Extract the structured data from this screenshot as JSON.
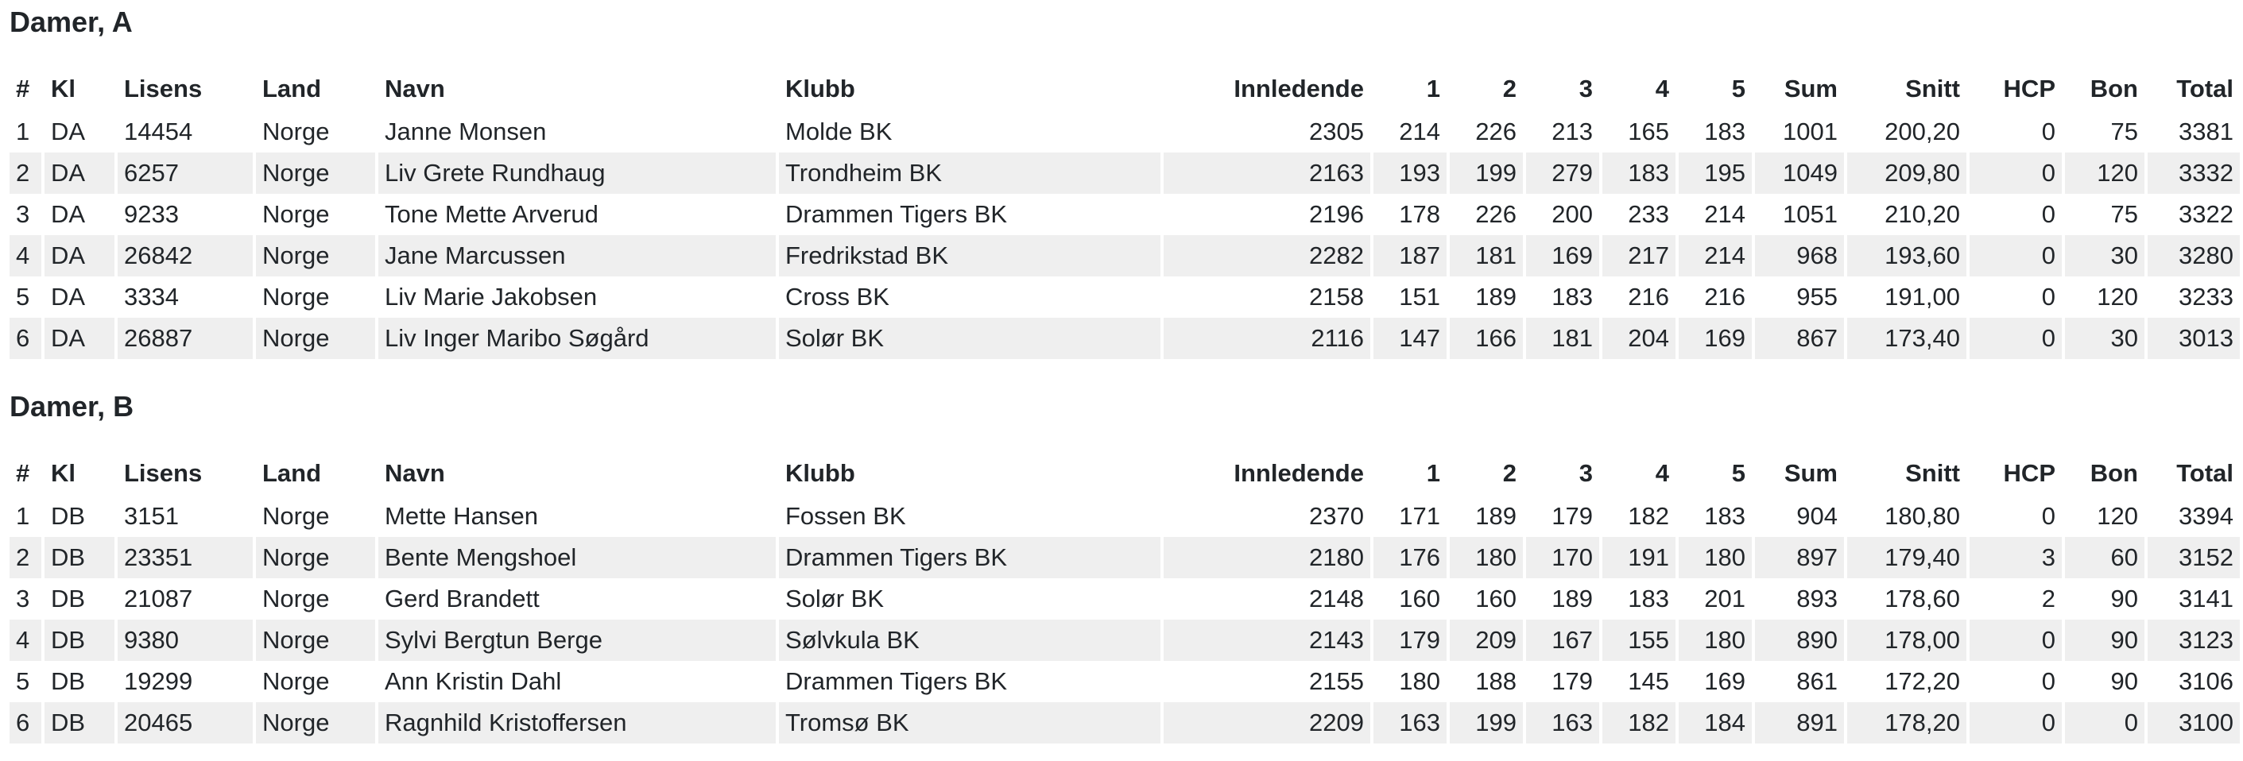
{
  "columns": [
    "#",
    "Kl",
    "Lisens",
    "Land",
    "Navn",
    "Klubb",
    "Innledende",
    "1",
    "2",
    "3",
    "4",
    "5",
    "Sum",
    "Snitt",
    "HCP",
    "Bon",
    "Total"
  ],
  "sections": [
    {
      "title": "Damer, A",
      "rows": [
        [
          "1",
          "DA",
          "14454",
          "Norge",
          "Janne Monsen",
          "Molde BK",
          "2305",
          "214",
          "226",
          "213",
          "165",
          "183",
          "1001",
          "200,20",
          "0",
          "75",
          "3381"
        ],
        [
          "2",
          "DA",
          "6257",
          "Norge",
          "Liv Grete Rundhaug",
          "Trondheim BK",
          "2163",
          "193",
          "199",
          "279",
          "183",
          "195",
          "1049",
          "209,80",
          "0",
          "120",
          "3332"
        ],
        [
          "3",
          "DA",
          "9233",
          "Norge",
          "Tone Mette Arverud",
          "Drammen Tigers BK",
          "2196",
          "178",
          "226",
          "200",
          "233",
          "214",
          "1051",
          "210,20",
          "0",
          "75",
          "3322"
        ],
        [
          "4",
          "DA",
          "26842",
          "Norge",
          "Jane Marcussen",
          "Fredrikstad BK",
          "2282",
          "187",
          "181",
          "169",
          "217",
          "214",
          "968",
          "193,60",
          "0",
          "30",
          "3280"
        ],
        [
          "5",
          "DA",
          "3334",
          "Norge",
          "Liv Marie Jakobsen",
          "Cross BK",
          "2158",
          "151",
          "189",
          "183",
          "216",
          "216",
          "955",
          "191,00",
          "0",
          "120",
          "3233"
        ],
        [
          "6",
          "DA",
          "26887",
          "Norge",
          "Liv Inger Maribo Søgård",
          "Solør BK",
          "2116",
          "147",
          "166",
          "181",
          "204",
          "169",
          "867",
          "173,40",
          "0",
          "30",
          "3013"
        ]
      ]
    },
    {
      "title": "Damer, B",
      "rows": [
        [
          "1",
          "DB",
          "3151",
          "Norge",
          "Mette Hansen",
          "Fossen BK",
          "2370",
          "171",
          "189",
          "179",
          "182",
          "183",
          "904",
          "180,80",
          "0",
          "120",
          "3394"
        ],
        [
          "2",
          "DB",
          "23351",
          "Norge",
          "Bente Mengshoel",
          "Drammen Tigers BK",
          "2180",
          "176",
          "180",
          "170",
          "191",
          "180",
          "897",
          "179,40",
          "3",
          "60",
          "3152"
        ],
        [
          "3",
          "DB",
          "21087",
          "Norge",
          "Gerd Brandett",
          "Solør BK",
          "2148",
          "160",
          "160",
          "189",
          "183",
          "201",
          "893",
          "178,60",
          "2",
          "90",
          "3141"
        ],
        [
          "4",
          "DB",
          "9380",
          "Norge",
          "Sylvi Bergtun Berge",
          "Sølvkula BK",
          "2143",
          "179",
          "209",
          "167",
          "155",
          "180",
          "890",
          "178,00",
          "0",
          "90",
          "3123"
        ],
        [
          "5",
          "DB",
          "19299",
          "Norge",
          "Ann Kristin Dahl",
          "Drammen Tigers BK",
          "2155",
          "180",
          "188",
          "179",
          "145",
          "169",
          "861",
          "172,20",
          "0",
          "90",
          "3106"
        ],
        [
          "6",
          "DB",
          "20465",
          "Norge",
          "Ragnhild Kristoffersen",
          "Tromsø BK",
          "2209",
          "163",
          "199",
          "163",
          "182",
          "184",
          "891",
          "178,20",
          "0",
          "0",
          "3100"
        ]
      ]
    }
  ]
}
